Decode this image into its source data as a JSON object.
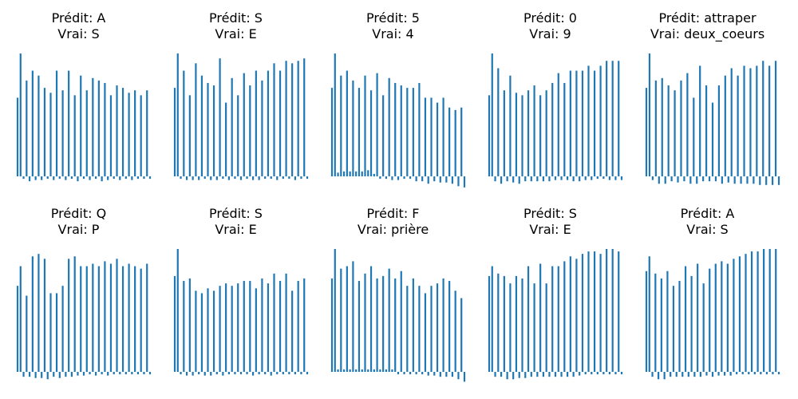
{
  "colors": {
    "bar": "#1f77b4",
    "text": "#000000"
  },
  "chart_data": [
    {
      "type": "bar",
      "pred_label": "Prédit: A",
      "true_label": "Vrai: S",
      "values": [
        0.64,
        1.0,
        -0.02,
        0.78,
        -0.04,
        0.86,
        -0.03,
        0.82,
        -0.03,
        0.72,
        -0.02,
        0.68,
        -0.03,
        0.86,
        -0.02,
        0.7,
        -0.03,
        0.86,
        -0.02,
        0.66,
        -0.04,
        0.82,
        -0.02,
        0.7,
        -0.03,
        0.8,
        -0.02,
        0.78,
        -0.04,
        0.76,
        -0.03,
        0.66,
        -0.02,
        0.74,
        -0.03,
        0.72,
        -0.02,
        0.68,
        -0.03,
        0.7,
        -0.02,
        0.66,
        -0.02,
        0.7,
        -0.02
      ]
    },
    {
      "type": "bar",
      "pred_label": "Prédit: S",
      "true_label": "Vrai: E",
      "values": [
        0.72,
        1.0,
        -0.02,
        0.86,
        -0.03,
        0.66,
        -0.03,
        0.92,
        -0.03,
        0.82,
        -0.02,
        0.76,
        -0.03,
        0.74,
        -0.03,
        0.96,
        -0.02,
        0.6,
        -0.03,
        0.8,
        -0.02,
        0.66,
        -0.03,
        0.84,
        -0.02,
        0.74,
        -0.03,
        0.86,
        -0.03,
        0.78,
        -0.02,
        0.86,
        -0.02,
        0.92,
        -0.03,
        0.86,
        -0.02,
        0.94,
        -0.02,
        0.92,
        -0.03,
        0.94,
        -0.02,
        0.96,
        -0.02
      ]
    },
    {
      "type": "bar",
      "pred_label": "Prédit: 5",
      "true_label": "Vrai: 4",
      "values": [
        0.72,
        1.0,
        0.03,
        0.82,
        0.04,
        0.86,
        0.04,
        0.78,
        0.04,
        0.72,
        0.04,
        0.82,
        0.05,
        0.7,
        0.02,
        0.84,
        -0.02,
        0.66,
        -0.02,
        0.8,
        -0.03,
        0.76,
        -0.03,
        0.74,
        -0.02,
        0.72,
        -0.02,
        0.72,
        -0.04,
        0.76,
        -0.04,
        0.64,
        -0.06,
        0.64,
        -0.04,
        0.6,
        -0.05,
        0.64,
        -0.05,
        0.56,
        -0.06,
        0.54,
        -0.08,
        0.56,
        -0.09
      ]
    },
    {
      "type": "bar",
      "pred_label": "Prédit: 0",
      "true_label": "Vrai: 9",
      "values": [
        0.66,
        1.0,
        -0.04,
        0.88,
        -0.06,
        0.7,
        -0.04,
        0.82,
        -0.05,
        0.68,
        -0.06,
        0.66,
        -0.04,
        0.7,
        -0.04,
        0.74,
        -0.04,
        0.66,
        -0.04,
        0.7,
        -0.04,
        0.76,
        -0.03,
        0.84,
        -0.03,
        0.76,
        -0.03,
        0.86,
        -0.04,
        0.86,
        -0.04,
        0.86,
        -0.03,
        0.9,
        -0.03,
        0.86,
        -0.02,
        0.9,
        -0.02,
        0.94,
        -0.03,
        0.94,
        -0.03,
        0.94,
        -0.03
      ]
    },
    {
      "type": "bar",
      "pred_label": "Prédit: attraper",
      "true_label": "Vrai: deux_coeurs",
      "values": [
        0.72,
        1.0,
        -0.03,
        0.78,
        -0.06,
        0.8,
        -0.06,
        0.74,
        -0.04,
        0.7,
        -0.05,
        0.78,
        -0.04,
        0.84,
        -0.06,
        0.64,
        -0.06,
        0.9,
        -0.04,
        0.74,
        -0.04,
        0.6,
        -0.04,
        0.74,
        -0.06,
        0.82,
        -0.05,
        0.88,
        -0.06,
        0.82,
        -0.06,
        0.9,
        -0.06,
        0.88,
        -0.06,
        0.9,
        -0.07,
        0.94,
        -0.07,
        0.9,
        -0.07,
        0.94,
        -0.07
      ]
    },
    {
      "type": "bar",
      "pred_label": "Prédit: Q",
      "true_label": "Vrai: P",
      "values": [
        0.7,
        0.86,
        -0.04,
        0.62,
        -0.04,
        0.94,
        -0.05,
        0.96,
        -0.05,
        0.92,
        -0.06,
        0.64,
        -0.04,
        0.64,
        -0.05,
        0.7,
        -0.04,
        0.92,
        -0.04,
        0.94,
        -0.03,
        0.86,
        -0.03,
        0.86,
        -0.02,
        0.88,
        -0.03,
        0.86,
        -0.02,
        0.9,
        -0.03,
        0.88,
        -0.02,
        0.92,
        -0.02,
        0.86,
        -0.02,
        0.88,
        -0.02,
        0.86,
        -0.02,
        0.84,
        -0.02,
        0.88,
        -0.02
      ]
    },
    {
      "type": "bar",
      "pred_label": "Prédit: S",
      "true_label": "Vrai: E",
      "values": [
        0.78,
        1.0,
        -0.02,
        0.74,
        -0.03,
        0.76,
        -0.03,
        0.66,
        -0.02,
        0.64,
        -0.03,
        0.68,
        -0.03,
        0.66,
        -0.02,
        0.7,
        -0.03,
        0.72,
        -0.02,
        0.7,
        -0.02,
        0.72,
        -0.02,
        0.74,
        -0.02,
        0.74,
        -0.03,
        0.68,
        -0.02,
        0.76,
        -0.02,
        0.72,
        -0.03,
        0.8,
        -0.02,
        0.74,
        -0.02,
        0.8,
        -0.02,
        0.66,
        -0.02,
        0.74,
        -0.02,
        0.76,
        -0.02
      ]
    },
    {
      "type": "bar",
      "pred_label": "Prédit: F",
      "true_label": "Vrai: prière",
      "values": [
        0.76,
        1.0,
        0.02,
        0.84,
        0.02,
        0.86,
        0.02,
        0.9,
        0.02,
        0.74,
        0.02,
        0.8,
        0.02,
        0.86,
        0.02,
        0.76,
        0.02,
        0.78,
        0.02,
        0.84,
        0.02,
        0.76,
        -0.02,
        0.82,
        -0.02,
        0.7,
        -0.02,
        0.76,
        -0.02,
        0.7,
        -0.02,
        0.64,
        -0.03,
        0.7,
        -0.03,
        0.72,
        -0.04,
        0.76,
        -0.04,
        0.74,
        -0.04,
        0.66,
        -0.06,
        0.6,
        -0.08
      ]
    },
    {
      "type": "bar",
      "pred_label": "Prédit: S",
      "true_label": "Vrai: E",
      "values": [
        0.78,
        0.86,
        -0.04,
        0.8,
        -0.04,
        0.78,
        -0.06,
        0.72,
        -0.06,
        0.78,
        -0.05,
        0.76,
        -0.05,
        0.86,
        -0.04,
        0.72,
        -0.04,
        0.88,
        -0.04,
        0.72,
        -0.04,
        0.86,
        -0.04,
        0.86,
        -0.04,
        0.9,
        -0.04,
        0.94,
        -0.04,
        0.92,
        -0.03,
        0.96,
        -0.02,
        0.98,
        -0.02,
        0.98,
        -0.02,
        0.96,
        -0.02,
        1.0,
        -0.02,
        1.0,
        -0.02,
        0.98,
        -0.02
      ]
    },
    {
      "type": "bar",
      "pred_label": "Prédit: A",
      "true_label": "Vrai: S",
      "values": [
        0.82,
        0.94,
        -0.04,
        0.8,
        -0.06,
        0.76,
        -0.06,
        0.82,
        -0.04,
        0.7,
        -0.04,
        0.74,
        -0.04,
        0.86,
        -0.04,
        0.78,
        -0.04,
        0.88,
        -0.04,
        0.72,
        -0.03,
        0.84,
        -0.04,
        0.88,
        -0.03,
        0.9,
        -0.03,
        0.88,
        -0.03,
        0.92,
        -0.02,
        0.94,
        -0.02,
        0.96,
        -0.02,
        0.98,
        -0.02,
        0.98,
        -0.02,
        1.0,
        -0.02,
        1.0,
        -0.02,
        1.0,
        -0.02
      ]
    }
  ]
}
